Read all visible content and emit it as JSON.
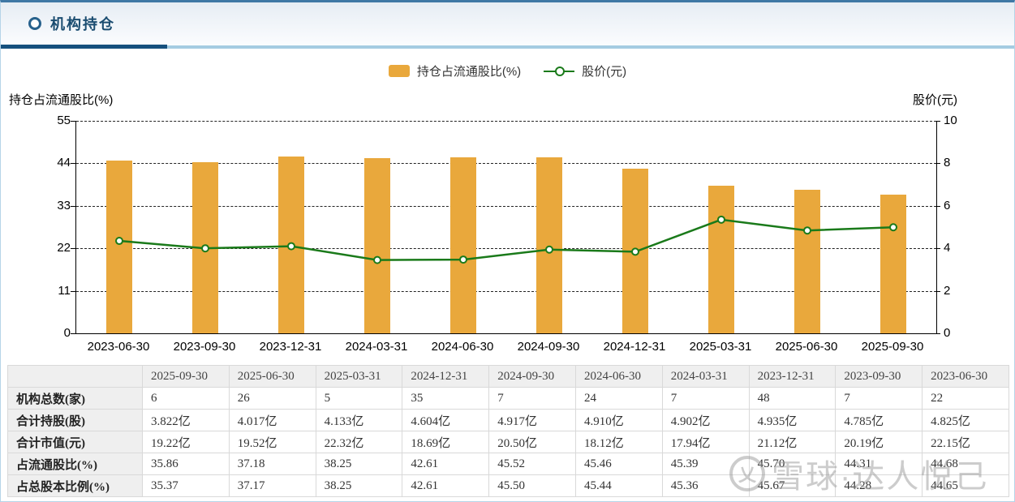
{
  "header": {
    "title": "机构持仓"
  },
  "legend": {
    "bar_label": "持仓占流通股比(%)",
    "line_label": "股价(元)"
  },
  "colors": {
    "bar": "#e9a83c",
    "line": "#1a7a1a",
    "accent_dark_blue": "#16507e",
    "accent_light_blue": "#a5cce2",
    "top_bar": "#3f78a5",
    "table_border": "#d9d9d9",
    "table_label_bg": "#efefef"
  },
  "chart_data": {
    "type": "bar+line",
    "categories": [
      "2023-06-30",
      "2023-09-30",
      "2023-12-31",
      "2024-03-31",
      "2024-06-30",
      "2024-09-30",
      "2024-12-31",
      "2025-03-31",
      "2025-06-30",
      "2025-09-30"
    ],
    "series": [
      {
        "name": "持仓占流通股比(%)",
        "type": "bar",
        "axis": "left",
        "values": [
          44.68,
          44.31,
          45.7,
          45.39,
          45.46,
          45.52,
          42.61,
          38.25,
          37.18,
          35.86
        ]
      },
      {
        "name": "股价(元)",
        "type": "line",
        "axis": "right",
        "values": [
          4.35,
          4.0,
          4.1,
          3.45,
          3.47,
          3.94,
          3.84,
          5.35,
          4.84,
          4.99
        ]
      }
    ],
    "left_axis": {
      "title": "持仓占流通股比(%)",
      "ticks": [
        0,
        11,
        22,
        33,
        44,
        55
      ],
      "min": 0,
      "max": 55
    },
    "right_axis": {
      "title": "股价(元)",
      "ticks": [
        0,
        2,
        4,
        6,
        8,
        10
      ],
      "min": 0,
      "max": 10
    },
    "grid": "dashed horizontal",
    "legend_position": "top-center"
  },
  "table": {
    "corner_label": "",
    "columns": [
      "2025-09-30",
      "2025-06-30",
      "2025-03-31",
      "2024-12-31",
      "2024-09-30",
      "2024-06-30",
      "2024-03-31",
      "2023-12-31",
      "2023-09-30",
      "2023-06-30"
    ],
    "rows": [
      {
        "label": "机构总数(家)",
        "values": [
          "6",
          "26",
          "5",
          "35",
          "7",
          "24",
          "7",
          "48",
          "7",
          "22"
        ]
      },
      {
        "label": "合计持股(股)",
        "values": [
          "3.822亿",
          "4.017亿",
          "4.133亿",
          "4.604亿",
          "4.917亿",
          "4.910亿",
          "4.902亿",
          "4.935亿",
          "4.785亿",
          "4.825亿"
        ]
      },
      {
        "label": "合计市值(元)",
        "values": [
          "19.22亿",
          "19.52亿",
          "22.32亿",
          "18.69亿",
          "20.50亿",
          "18.12亿",
          "17.94亿",
          "21.12亿",
          "20.19亿",
          "22.15亿"
        ]
      },
      {
        "label": "占流通股比(%)",
        "values": [
          "35.86",
          "37.18",
          "38.25",
          "42.61",
          "45.52",
          "45.46",
          "45.39",
          "45.70",
          "44.31",
          "44.68"
        ]
      },
      {
        "label": "占总股本比例(%)",
        "values": [
          "35.37",
          "37.17",
          "38.25",
          "42.61",
          "45.50",
          "45.44",
          "45.36",
          "45.67",
          "44.28",
          "44.65"
        ]
      }
    ]
  },
  "watermark": {
    "logo_glyph": "乂",
    "text": "雪球·达人悦己"
  }
}
